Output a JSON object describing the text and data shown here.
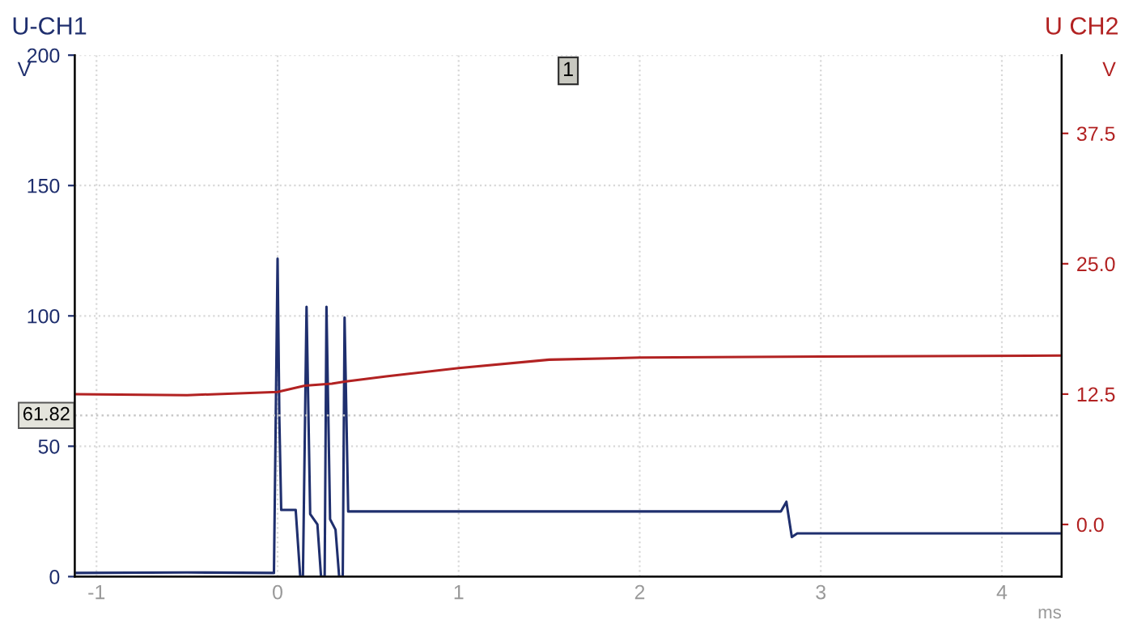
{
  "chart_data": {
    "type": "line",
    "ylabel": "U-CH1",
    "y2label": "U CH2",
    "xlabel": "ms",
    "annotations": [
      "V",
      "V",
      "1"
    ],
    "series": [
      {
        "color": "#1f2f6e",
        "x": [
          -1.12,
          -0.5,
          -0.02,
          0.0,
          0.01,
          0.02,
          0.1,
          0.125,
          0.14,
          0.16,
          0.18,
          0.22,
          0.24,
          0.26,
          0.27,
          0.29,
          0.32,
          0.34,
          0.36,
          0.37,
          0.39,
          1.0,
          2.0,
          2.78,
          2.81,
          2.84,
          2.87,
          3.5,
          4.33
        ],
        "values": [
          1.4,
          1.6,
          1.4,
          122,
          60,
          25.6,
          25.6,
          0,
          0,
          103.5,
          24,
          20,
          0,
          0,
          103.5,
          22,
          18,
          0,
          0,
          99.4,
          25,
          25,
          25,
          25,
          28.7,
          15.2,
          16.6,
          16.6,
          16.6
        ]
      },
      {
        "color": "#b22222",
        "axis": "y2",
        "x": [
          -1.12,
          -0.5,
          0.0,
          0.15,
          0.3,
          0.37,
          0.6,
          1.0,
          1.5,
          2.0,
          3.0,
          4.33
        ],
        "values": [
          12.5,
          12.4,
          12.7,
          13.3,
          13.5,
          13.7,
          14.2,
          15.0,
          15.8,
          16.0,
          16.1,
          16.2
        ]
      }
    ],
    "xlim": [
      -1.12,
      4.33
    ],
    "xticks": [
      -1,
      0,
      1,
      2,
      3,
      4
    ],
    "ylim": [
      0,
      200
    ],
    "yticks": [
      0,
      50,
      100,
      150,
      200
    ],
    "y2lim": [
      -5,
      45
    ],
    "y2ticks": [
      {
        "value": 0,
        "label": "0.0"
      },
      12.5,
      {
        "value": 25,
        "label": "25.0"
      },
      37.5
    ],
    "ref_lines": [
      {
        "axis": "y",
        "value": 61.82,
        "label": "61.82",
        "color": "#c8c8c8",
        "line_style": "dotted"
      }
    ],
    "grid": true,
    "legend": false,
    "marker": "none",
    "line_style": "solid"
  }
}
